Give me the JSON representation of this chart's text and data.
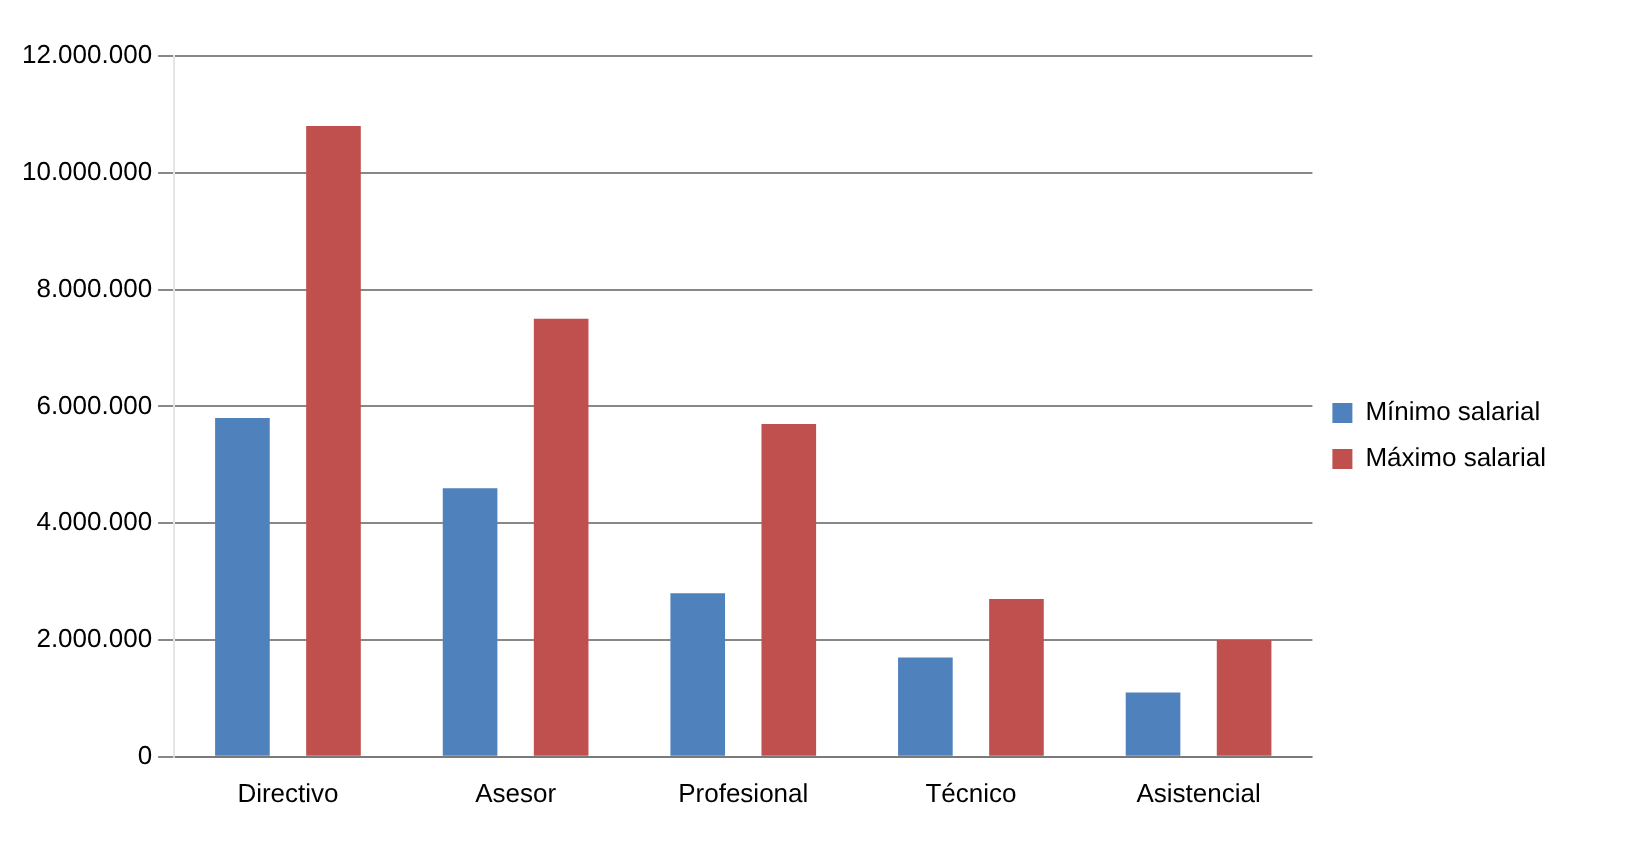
{
  "chart_data": {
    "type": "bar",
    "categories": [
      "Directivo",
      "Asesor",
      "Profesional",
      "Técnico",
      "Asistencial"
    ],
    "series": [
      {
        "name": "Mínimo salarial",
        "color": "#4f81bd",
        "values": [
          5800000,
          4600000,
          2800000,
          1700000,
          1100000
        ]
      },
      {
        "name": "Máximo salarial",
        "color": "#c0504d",
        "values": [
          10800000,
          7500000,
          5700000,
          2700000,
          2000000
        ]
      }
    ],
    "ylim": [
      0,
      12000000
    ],
    "yticks": [
      {
        "value": 0,
        "label": "0"
      },
      {
        "value": 2000000,
        "label": "2.000.000"
      },
      {
        "value": 4000000,
        "label": "4.000.000"
      },
      {
        "value": 6000000,
        "label": "6.000.000"
      },
      {
        "value": 8000000,
        "label": "8.000.000"
      },
      {
        "value": 10000000,
        "label": "10.000.000"
      },
      {
        "value": 12000000,
        "label": "12.000.000"
      }
    ],
    "grid": "y",
    "legend": "right"
  }
}
